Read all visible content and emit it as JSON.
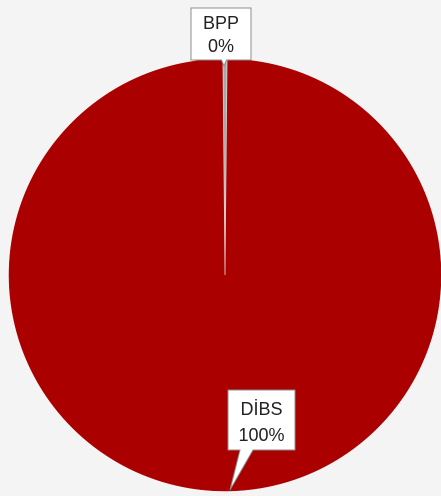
{
  "chart_data": {
    "type": "pie",
    "categories": [
      "DİBS",
      "BPP"
    ],
    "values": [
      99.7,
      0.3
    ],
    "data_labels": [
      "100%",
      "0%"
    ],
    "colors": [
      "#ab0000",
      "#a9a9a9"
    ],
    "background": "#f4f4f4",
    "label_border_color": "#8c8c8c"
  }
}
